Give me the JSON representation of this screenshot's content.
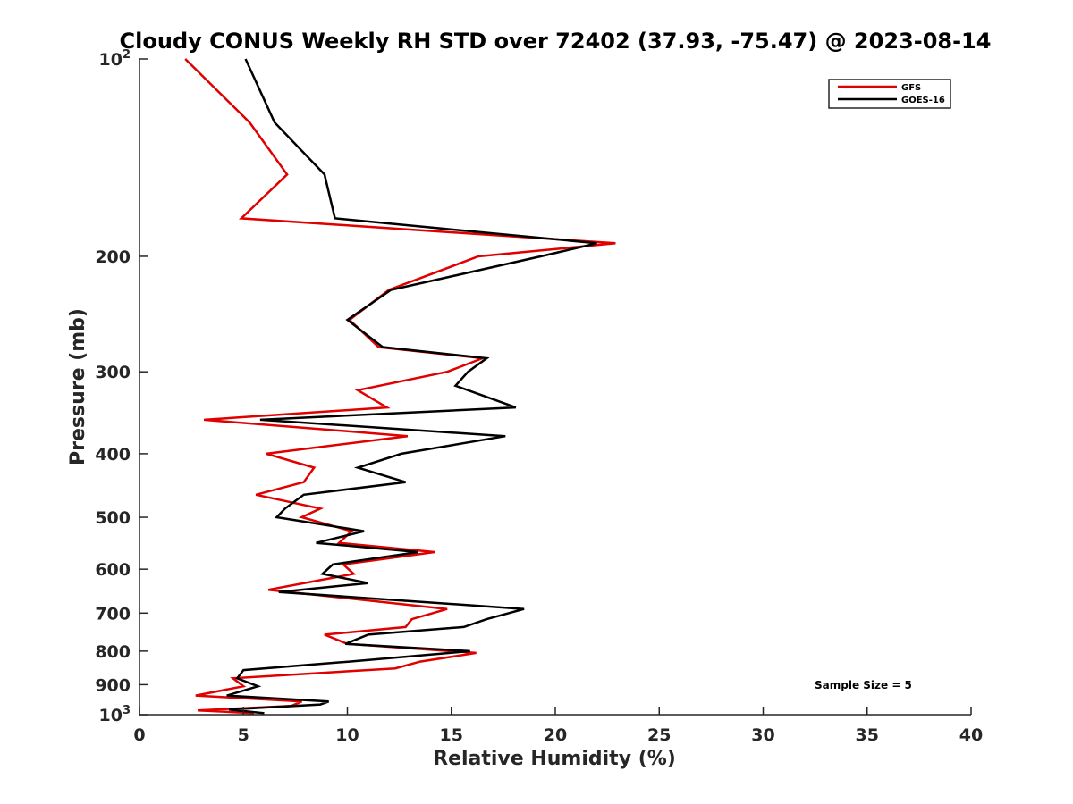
{
  "chart_data": {
    "type": "line",
    "title": "Cloudy CONUS Weekly RH STD over 72402 (37.93, -75.47) @ 2023-08-14",
    "xlabel": "Relative Humidity (%)",
    "ylabel": "Pressure (mb)",
    "xlim": [
      0,
      40
    ],
    "ylim": [
      100,
      1000
    ],
    "yscale": "log",
    "y_reversed": true,
    "grid": false,
    "legend_position": "top-right",
    "x_ticks": [
      "0",
      "5",
      "10",
      "15",
      "20",
      "25",
      "30",
      "35",
      "40"
    ],
    "y_ticks": [
      {
        "value": 100,
        "base": "10",
        "exp": "2"
      },
      {
        "value": 200,
        "label": "200"
      },
      {
        "value": 300,
        "label": "300"
      },
      {
        "value": 400,
        "label": "400"
      },
      {
        "value": 500,
        "label": "500"
      },
      {
        "value": 600,
        "label": "600"
      },
      {
        "value": 700,
        "label": "700"
      },
      {
        "value": 800,
        "label": "800"
      },
      {
        "value": 900,
        "label": "900"
      },
      {
        "value": 1000,
        "base": "10",
        "exp": "3"
      }
    ],
    "annotation": "Sample Size = 5",
    "series": [
      {
        "name": "GFS",
        "color": "#e00000",
        "points": [
          [
            2.2,
            100
          ],
          [
            5.3,
            125
          ],
          [
            7.1,
            150
          ],
          [
            4.9,
            175
          ],
          [
            22.9,
            191
          ],
          [
            16.3,
            200
          ],
          [
            12.0,
            225
          ],
          [
            10.1,
            250
          ],
          [
            11.5,
            275
          ],
          [
            16.5,
            286
          ],
          [
            14.8,
            300
          ],
          [
            10.5,
            320
          ],
          [
            11.9,
            340
          ],
          [
            3.1,
            355
          ],
          [
            12.9,
            376
          ],
          [
            6.1,
            400
          ],
          [
            8.4,
            420
          ],
          [
            7.9,
            442
          ],
          [
            5.6,
            462
          ],
          [
            8.7,
            485
          ],
          [
            7.8,
            500
          ],
          [
            10.2,
            525
          ],
          [
            9.6,
            547
          ],
          [
            14.2,
            565
          ],
          [
            9.8,
            590
          ],
          [
            10.3,
            610
          ],
          [
            6.2,
            645
          ],
          [
            14.8,
            690
          ],
          [
            13.1,
            715
          ],
          [
            12.8,
            735
          ],
          [
            8.9,
            755
          ],
          [
            10.0,
            780
          ],
          [
            16.2,
            805
          ],
          [
            13.5,
            830
          ],
          [
            12.3,
            850
          ],
          [
            4.5,
            880
          ],
          [
            5.0,
            905
          ],
          [
            2.7,
            935
          ],
          [
            7.8,
            955
          ],
          [
            7.3,
            970
          ],
          [
            2.8,
            985
          ],
          [
            5.5,
            995
          ]
        ]
      },
      {
        "name": "GOES-16",
        "color": "#000000",
        "points": [
          [
            5.1,
            100
          ],
          [
            6.5,
            125
          ],
          [
            8.9,
            150
          ],
          [
            9.4,
            175
          ],
          [
            22.0,
            191
          ],
          [
            19.3,
            200
          ],
          [
            12.1,
            225
          ],
          [
            10.0,
            250
          ],
          [
            11.7,
            275
          ],
          [
            16.7,
            286
          ],
          [
            15.8,
            300
          ],
          [
            15.2,
            315
          ],
          [
            18.1,
            340
          ],
          [
            5.8,
            355
          ],
          [
            17.6,
            376
          ],
          [
            12.6,
            400
          ],
          [
            10.5,
            420
          ],
          [
            12.8,
            442
          ],
          [
            7.9,
            462
          ],
          [
            7.0,
            485
          ],
          [
            6.6,
            500
          ],
          [
            10.8,
            525
          ],
          [
            8.5,
            547
          ],
          [
            13.4,
            565
          ],
          [
            9.3,
            590
          ],
          [
            8.8,
            610
          ],
          [
            11.0,
            630
          ],
          [
            6.7,
            650
          ],
          [
            18.5,
            690
          ],
          [
            16.7,
            715
          ],
          [
            15.6,
            735
          ],
          [
            11.0,
            755
          ],
          [
            9.9,
            780
          ],
          [
            15.9,
            800
          ],
          [
            10.1,
            830
          ],
          [
            5.0,
            855
          ],
          [
            4.7,
            880
          ],
          [
            5.7,
            905
          ],
          [
            4.2,
            935
          ],
          [
            9.1,
            955
          ],
          [
            8.7,
            965
          ],
          [
            4.3,
            982
          ],
          [
            6.0,
            995
          ]
        ]
      }
    ]
  }
}
